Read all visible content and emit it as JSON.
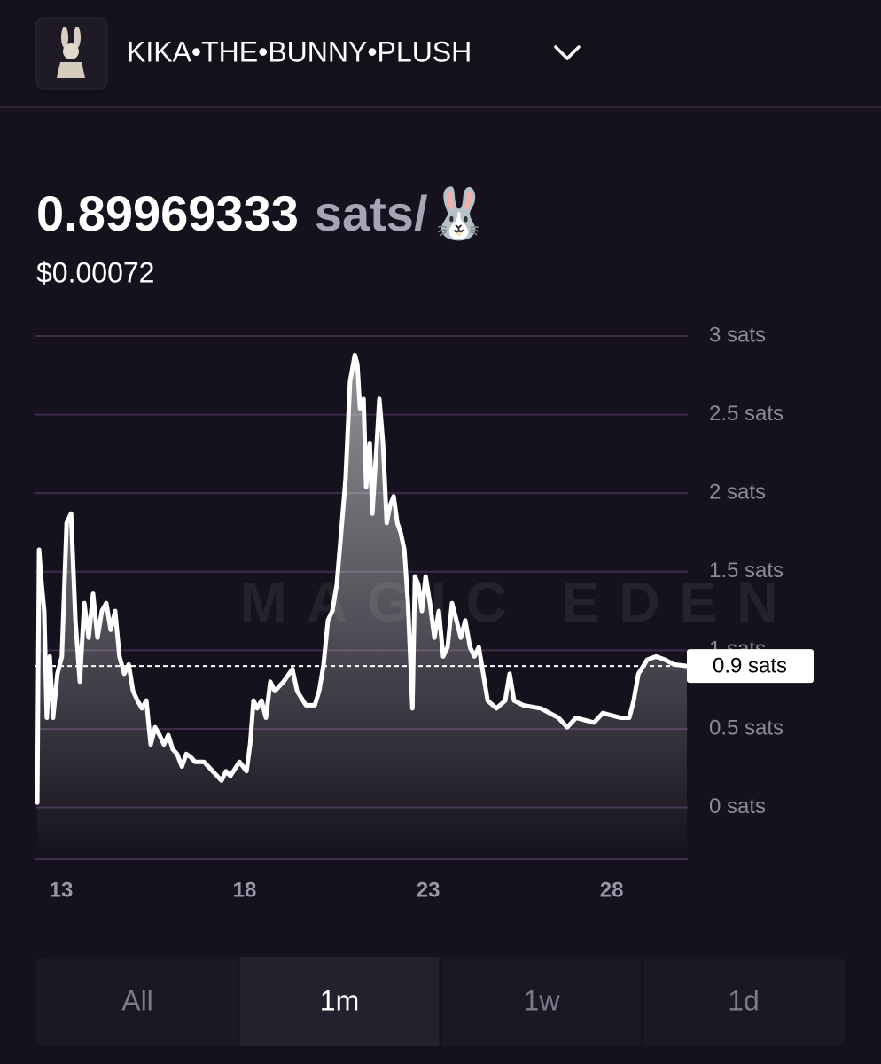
{
  "header": {
    "title": "KIKA•THE•BUNNY•PLUSH"
  },
  "price": {
    "value": "0.89969333",
    "unit": "sats/🐰",
    "usd": "$0.00072"
  },
  "chart_data": {
    "type": "line",
    "watermark": "MAGIC EDEN",
    "color": "#ffffff",
    "grid": true,
    "x": [
      12.35,
      12.4,
      12.47,
      12.54,
      12.61,
      12.69,
      12.78,
      12.9,
      13.02,
      13.15,
      13.27,
      13.39,
      13.51,
      13.63,
      13.75,
      13.87,
      13.99,
      14.11,
      14.23,
      14.35,
      14.47,
      14.59,
      14.72,
      14.84,
      14.96,
      15.08,
      15.2,
      15.32,
      15.44,
      15.56,
      15.68,
      15.8,
      15.92,
      16.04,
      16.16,
      16.29,
      16.41,
      16.53,
      16.65,
      16.89,
      17.13,
      17.37,
      17.49,
      17.61,
      17.86,
      18.05,
      18.15,
      18.24,
      18.34,
      18.46,
      18.58,
      18.7,
      18.82,
      19.06,
      19.3,
      19.43,
      19.67,
      19.91,
      20.03,
      20.15,
      20.27,
      20.39,
      20.51,
      20.63,
      20.75,
      20.87,
      21.0,
      21.07,
      21.14,
      21.24,
      21.31,
      21.41,
      21.48,
      21.6,
      21.67,
      21.77,
      21.87,
      21.96,
      22.06,
      22.16,
      22.25,
      22.35,
      22.45,
      22.57,
      22.64,
      22.73,
      22.83,
      22.93,
      23.05,
      23.17,
      23.29,
      23.41,
      23.53,
      23.65,
      23.77,
      23.89,
      24.01,
      24.14,
      24.26,
      24.38,
      24.5,
      24.62,
      24.86,
      25.1,
      25.22,
      25.34,
      25.59,
      26.07,
      26.55,
      26.79,
      27.03,
      27.52,
      27.76,
      28.24,
      28.48,
      28.6,
      28.73,
      28.97,
      29.21,
      29.45,
      29.69,
      30.05
    ],
    "values": [
      0.03,
      1.64,
      1.42,
      1.25,
      0.57,
      0.96,
      0.57,
      0.85,
      0.96,
      1.81,
      1.87,
      1.19,
      0.8,
      1.3,
      1.08,
      1.36,
      1.08,
      1.25,
      1.3,
      1.13,
      1.25,
      0.96,
      0.85,
      0.91,
      0.74,
      0.68,
      0.63,
      0.68,
      0.4,
      0.51,
      0.46,
      0.4,
      0.46,
      0.37,
      0.34,
      0.26,
      0.34,
      0.32,
      0.29,
      0.29,
      0.23,
      0.17,
      0.23,
      0.2,
      0.29,
      0.23,
      0.4,
      0.68,
      0.63,
      0.68,
      0.57,
      0.8,
      0.74,
      0.8,
      0.88,
      0.74,
      0.65,
      0.65,
      0.74,
      0.91,
      1.19,
      1.25,
      1.42,
      1.75,
      2.09,
      2.71,
      2.88,
      2.82,
      2.54,
      2.6,
      2.04,
      2.32,
      1.87,
      2.32,
      2.6,
      2.32,
      1.81,
      1.92,
      1.98,
      1.81,
      1.75,
      1.64,
      1.3,
      0.63,
      1.47,
      1.42,
      1.25,
      1.47,
      1.3,
      1.08,
      1.25,
      0.96,
      1.02,
      1.3,
      1.19,
      1.08,
      1.19,
      1.02,
      0.96,
      1.02,
      0.85,
      0.68,
      0.63,
      0.68,
      0.85,
      0.68,
      0.65,
      0.63,
      0.57,
      0.51,
      0.57,
      0.54,
      0.6,
      0.57,
      0.57,
      0.68,
      0.85,
      0.94,
      0.96,
      0.94,
      0.91,
      0.9
    ],
    "xlim": [
      12.3,
      30.05
    ],
    "xticks": [
      13,
      18,
      23,
      28
    ],
    "ylim": [
      -0.33,
      3
    ],
    "yticks": [
      {
        "value": 0,
        "label": "0 sats"
      },
      {
        "value": 0.5,
        "label": "0.5 sats"
      },
      {
        "value": 1,
        "label": "1 sats"
      },
      {
        "value": 1.5,
        "label": "1.5 sats"
      },
      {
        "value": 2,
        "label": "2 sats"
      },
      {
        "value": 2.5,
        "label": "2.5 sats"
      },
      {
        "value": 3,
        "label": "3 sats"
      }
    ],
    "current_price": {
      "value": 0.9,
      "label": "0.9 sats"
    }
  },
  "tabs": {
    "options": [
      "All",
      "1m",
      "1w",
      "1d"
    ],
    "selected": "1m"
  }
}
